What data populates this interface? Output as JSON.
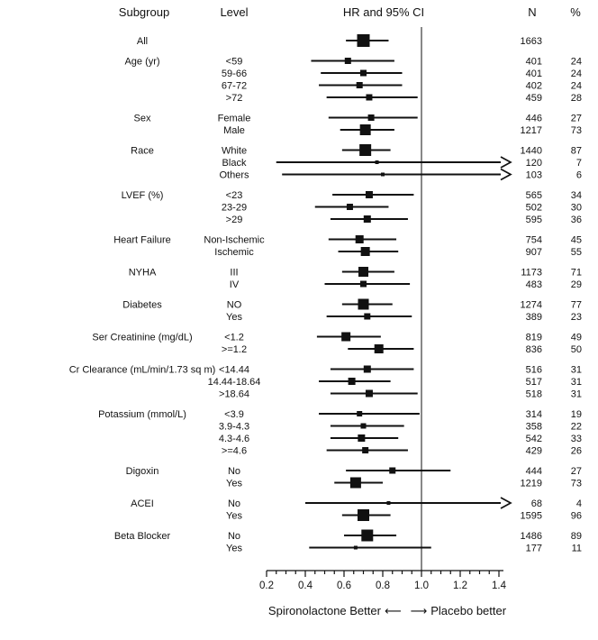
{
  "header": {
    "subgroup": "Subgroup",
    "level": "Level",
    "plot": "HR and 95% CI",
    "n": "N",
    "pct": "%"
  },
  "footer": {
    "left": "Spironolactone Better",
    "arrow_left": "⟵",
    "arrow_right": "⟶",
    "right": "Placebo better"
  },
  "chart_data": {
    "type": "forest",
    "title": "HR and 95% CI",
    "xlabel": "Spironolactone Better ⟵ ⟶ Placebo better",
    "xlim": [
      0.2,
      1.4
    ],
    "x_ticks": [
      0.2,
      0.4,
      0.6,
      0.8,
      1.0,
      1.2,
      1.4
    ],
    "ref_line": 1.0,
    "marker_color": "#111111",
    "groups": [
      {
        "name": "All",
        "rows": [
          {
            "level": "",
            "hr": 0.7,
            "lo": 0.61,
            "hi": 0.83,
            "n": 1663,
            "pct": ""
          }
        ]
      },
      {
        "name": "Age (yr)",
        "rows": [
          {
            "level": "<59",
            "hr": 0.62,
            "lo": 0.43,
            "hi": 0.86,
            "n": 401,
            "pct": "24"
          },
          {
            "level": "59-66",
            "hr": 0.7,
            "lo": 0.48,
            "hi": 0.9,
            "n": 401,
            "pct": "24"
          },
          {
            "level": "67-72",
            "hr": 0.68,
            "lo": 0.47,
            "hi": 0.9,
            "n": 402,
            "pct": "24"
          },
          {
            "level": ">72",
            "hr": 0.73,
            "lo": 0.51,
            "hi": 0.98,
            "n": 459,
            "pct": "28"
          }
        ]
      },
      {
        "name": "Sex",
        "rows": [
          {
            "level": "Female",
            "hr": 0.74,
            "lo": 0.52,
            "hi": 0.98,
            "n": 446,
            "pct": "27"
          },
          {
            "level": "Male",
            "hr": 0.71,
            "lo": 0.58,
            "hi": 0.86,
            "n": 1217,
            "pct": "73"
          }
        ]
      },
      {
        "name": "Race",
        "rows": [
          {
            "level": "White",
            "hr": 0.71,
            "lo": 0.59,
            "hi": 0.84,
            "n": 1440,
            "pct": "87"
          },
          {
            "level": "Black",
            "hr": 0.77,
            "lo": 0.25,
            "hi": null,
            "arrow_right": true,
            "n": 120,
            "pct": "7"
          },
          {
            "level": "Others",
            "hr": 0.8,
            "lo": 0.28,
            "hi": null,
            "arrow_right": true,
            "n": 103,
            "pct": "6"
          }
        ]
      },
      {
        "name": "LVEF (%)",
        "rows": [
          {
            "level": "<23",
            "hr": 0.73,
            "lo": 0.54,
            "hi": 0.96,
            "n": 565,
            "pct": "34"
          },
          {
            "level": "23-29",
            "hr": 0.63,
            "lo": 0.45,
            "hi": 0.83,
            "n": 502,
            "pct": "30"
          },
          {
            "level": ">29",
            "hr": 0.72,
            "lo": 0.53,
            "hi": 0.93,
            "n": 595,
            "pct": "36"
          }
        ]
      },
      {
        "name": "Heart Failure",
        "rows": [
          {
            "level": "Non-Ischemic",
            "hr": 0.68,
            "lo": 0.52,
            "hi": 0.87,
            "n": 754,
            "pct": "45"
          },
          {
            "level": "Ischemic",
            "hr": 0.71,
            "lo": 0.57,
            "hi": 0.88,
            "n": 907,
            "pct": "55"
          }
        ]
      },
      {
        "name": "NYHA",
        "rows": [
          {
            "level": "III",
            "hr": 0.7,
            "lo": 0.59,
            "hi": 0.86,
            "n": 1173,
            "pct": "71"
          },
          {
            "level": "IV",
            "hr": 0.7,
            "lo": 0.5,
            "hi": 0.94,
            "n": 483,
            "pct": "29"
          }
        ]
      },
      {
        "name": "Diabetes",
        "rows": [
          {
            "level": "NO",
            "hr": 0.7,
            "lo": 0.59,
            "hi": 0.85,
            "n": 1274,
            "pct": "77"
          },
          {
            "level": "Yes",
            "hr": 0.72,
            "lo": 0.51,
            "hi": 0.95,
            "n": 389,
            "pct": "23"
          }
        ]
      },
      {
        "name": "Ser Creatinine (mg/dL)",
        "rows": [
          {
            "level": "<1.2",
            "hr": 0.61,
            "lo": 0.46,
            "hi": 0.79,
            "n": 819,
            "pct": "49"
          },
          {
            "level": ">=1.2",
            "hr": 0.78,
            "lo": 0.62,
            "hi": 0.96,
            "n": 836,
            "pct": "50"
          }
        ]
      },
      {
        "name": "Cr Clearance (mL/min/1.73 sq m)",
        "rows": [
          {
            "level": "<14.44",
            "hr": 0.72,
            "lo": 0.53,
            "hi": 0.96,
            "n": 516,
            "pct": "31"
          },
          {
            "level": "14.44-18.64",
            "hr": 0.64,
            "lo": 0.47,
            "hi": 0.84,
            "n": 517,
            "pct": "31"
          },
          {
            "level": ">18.64",
            "hr": 0.73,
            "lo": 0.53,
            "hi": 0.98,
            "n": 518,
            "pct": "31"
          }
        ]
      },
      {
        "name": "Potassium (mmol/L)",
        "rows": [
          {
            "level": "<3.9",
            "hr": 0.68,
            "lo": 0.47,
            "hi": 0.99,
            "n": 314,
            "pct": "19"
          },
          {
            "level": "3.9-4.3",
            "hr": 0.7,
            "lo": 0.53,
            "hi": 0.91,
            "n": 358,
            "pct": "22"
          },
          {
            "level": "4.3-4.6",
            "hr": 0.69,
            "lo": 0.53,
            "hi": 0.88,
            "n": 542,
            "pct": "33"
          },
          {
            "level": ">=4.6",
            "hr": 0.71,
            "lo": 0.51,
            "hi": 0.93,
            "n": 429,
            "pct": "26"
          }
        ]
      },
      {
        "name": "Digoxin",
        "rows": [
          {
            "level": "No",
            "hr": 0.85,
            "lo": 0.61,
            "hi": 1.15,
            "n": 444,
            "pct": "27"
          },
          {
            "level": "Yes",
            "hr": 0.66,
            "lo": 0.55,
            "hi": 0.8,
            "n": 1219,
            "pct": "73"
          }
        ]
      },
      {
        "name": "ACEI",
        "rows": [
          {
            "level": "No",
            "hr": 0.83,
            "lo": 0.4,
            "hi": null,
            "arrow_right": true,
            "n": 68,
            "pct": "4"
          },
          {
            "level": "Yes",
            "hr": 0.7,
            "lo": 0.59,
            "hi": 0.84,
            "n": 1595,
            "pct": "96"
          }
        ]
      },
      {
        "name": "Beta Blocker",
        "rows": [
          {
            "level": "No",
            "hr": 0.72,
            "lo": 0.6,
            "hi": 0.87,
            "n": 1486,
            "pct": "89"
          },
          {
            "level": "Yes",
            "hr": 0.66,
            "lo": 0.42,
            "hi": 1.05,
            "n": 177,
            "pct": "11"
          }
        ]
      }
    ]
  }
}
